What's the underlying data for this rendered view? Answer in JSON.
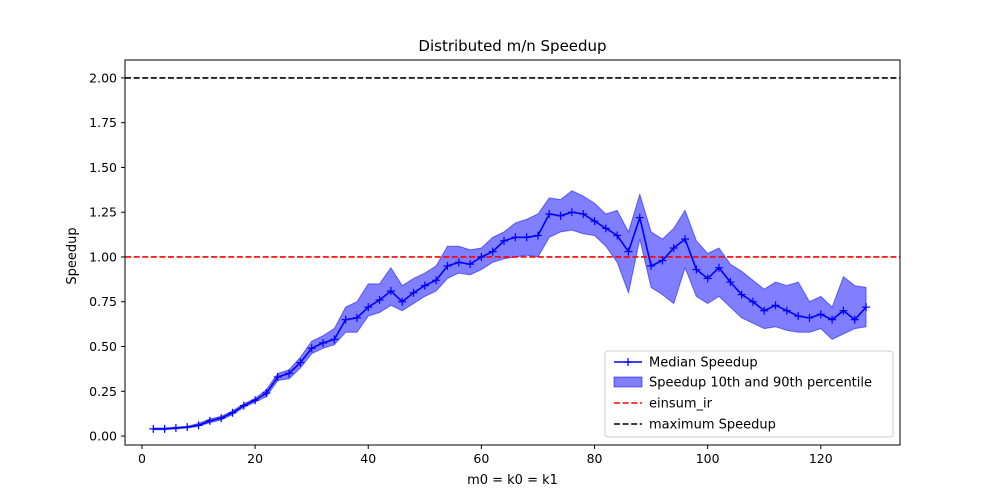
{
  "chart_data": {
    "type": "line",
    "title": "Distributed m/n Speedup",
    "xlabel": "m0 = k0 = k1",
    "ylabel": "Speedup",
    "xlim": [
      -3,
      134
    ],
    "ylim": [
      -0.05,
      2.1
    ],
    "xticks": [
      "0",
      "20",
      "40",
      "60",
      "80",
      "100",
      "120"
    ],
    "yticks": [
      "0.00",
      "0.25",
      "0.50",
      "0.75",
      "1.00",
      "1.25",
      "1.50",
      "1.75",
      "2.00"
    ],
    "grid": false,
    "legend_position": "lower-right",
    "x": [
      2,
      4,
      6,
      8,
      10,
      12,
      14,
      16,
      18,
      20,
      22,
      24,
      26,
      28,
      30,
      32,
      34,
      36,
      38,
      40,
      42,
      44,
      46,
      48,
      50,
      52,
      54,
      56,
      58,
      60,
      62,
      64,
      66,
      68,
      70,
      72,
      74,
      76,
      78,
      80,
      82,
      84,
      86,
      88,
      90,
      92,
      94,
      96,
      98,
      100,
      102,
      104,
      106,
      108,
      110,
      112,
      114,
      116,
      118,
      120,
      122,
      124,
      126,
      128
    ],
    "series": [
      {
        "name": "Median Speedup",
        "color": "#0000ff",
        "marker": "+",
        "values": [
          0.04,
          0.04,
          0.045,
          0.05,
          0.06,
          0.085,
          0.1,
          0.13,
          0.17,
          0.2,
          0.24,
          0.33,
          0.35,
          0.41,
          0.49,
          0.52,
          0.54,
          0.65,
          0.66,
          0.72,
          0.76,
          0.81,
          0.75,
          0.8,
          0.84,
          0.87,
          0.95,
          0.97,
          0.96,
          1.0,
          1.03,
          1.09,
          1.11,
          1.11,
          1.12,
          1.24,
          1.23,
          1.25,
          1.24,
          1.2,
          1.16,
          1.12,
          1.03,
          1.22,
          0.95,
          0.98,
          1.05,
          1.1,
          0.93,
          0.88,
          0.94,
          0.86,
          0.79,
          0.75,
          0.7,
          0.73,
          0.7,
          0.67,
          0.66,
          0.68,
          0.65,
          0.7,
          0.65,
          0.72
        ]
      },
      {
        "name": "Speedup 10th and 90th percentile",
        "color": "#0000ff",
        "opacity": 0.5,
        "band": true,
        "upper": [
          0.045,
          0.045,
          0.05,
          0.055,
          0.07,
          0.095,
          0.11,
          0.14,
          0.18,
          0.21,
          0.26,
          0.35,
          0.37,
          0.44,
          0.53,
          0.56,
          0.6,
          0.72,
          0.75,
          0.85,
          0.85,
          0.94,
          0.84,
          0.88,
          0.91,
          0.95,
          1.06,
          1.06,
          1.04,
          1.05,
          1.11,
          1.14,
          1.19,
          1.21,
          1.24,
          1.33,
          1.32,
          1.37,
          1.34,
          1.3,
          1.24,
          1.26,
          1.14,
          1.35,
          1.14,
          1.1,
          1.16,
          1.26,
          1.09,
          1.02,
          1.05,
          0.96,
          0.92,
          0.87,
          0.82,
          0.86,
          0.84,
          0.86,
          0.75,
          0.78,
          0.72,
          0.89,
          0.84,
          0.83
        ],
        "lower": [
          0.035,
          0.035,
          0.04,
          0.045,
          0.055,
          0.075,
          0.09,
          0.12,
          0.16,
          0.19,
          0.22,
          0.31,
          0.32,
          0.38,
          0.46,
          0.49,
          0.51,
          0.58,
          0.58,
          0.67,
          0.69,
          0.73,
          0.7,
          0.74,
          0.78,
          0.81,
          0.88,
          0.91,
          0.9,
          0.93,
          0.97,
          0.99,
          1.0,
          1.01,
          1.0,
          1.11,
          1.14,
          1.15,
          1.13,
          1.12,
          1.06,
          0.97,
          0.8,
          1.1,
          0.83,
          0.79,
          0.74,
          0.94,
          0.78,
          0.74,
          0.78,
          0.72,
          0.66,
          0.63,
          0.6,
          0.61,
          0.59,
          0.58,
          0.58,
          0.6,
          0.54,
          0.57,
          0.6,
          0.61
        ]
      }
    ],
    "hlines": [
      {
        "name": "einsum_ir",
        "y": 1.0,
        "color": "#ff0000",
        "style": "dashed"
      },
      {
        "name": "maximum Speedup",
        "y": 2.0,
        "color": "#000000",
        "style": "dashed"
      }
    ]
  }
}
